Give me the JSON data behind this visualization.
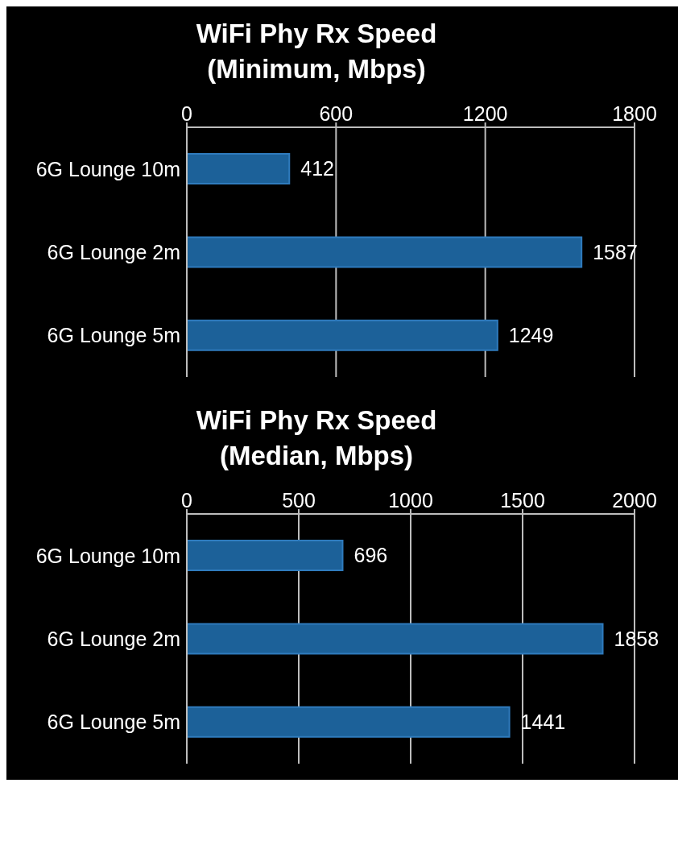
{
  "chart_data": [
    {
      "type": "bar",
      "orientation": "horizontal",
      "title": "WiFi Phy Rx Speed\n(Minimum, Mbps)",
      "categories": [
        "6G Lounge 10m",
        "6G Lounge 2m",
        "6G Lounge 5m"
      ],
      "values": [
        412,
        1587,
        1249
      ],
      "color": "#1c6199",
      "xlim": [
        0,
        1800
      ],
      "xticks": [
        0,
        600,
        1200,
        1800
      ],
      "grid": "x",
      "data_labels": true
    },
    {
      "type": "bar",
      "orientation": "horizontal",
      "title": "WiFi Phy Rx Speed\n(Median, Mbps)",
      "categories": [
        "6G Lounge 10m",
        "6G Lounge 2m",
        "6G Lounge 5m"
      ],
      "values": [
        696,
        1858,
        1441
      ],
      "color": "#1c6199",
      "xlim": [
        0,
        2000
      ],
      "xticks": [
        0,
        500,
        1000,
        1500,
        2000
      ],
      "grid": "x",
      "data_labels": true
    }
  ]
}
